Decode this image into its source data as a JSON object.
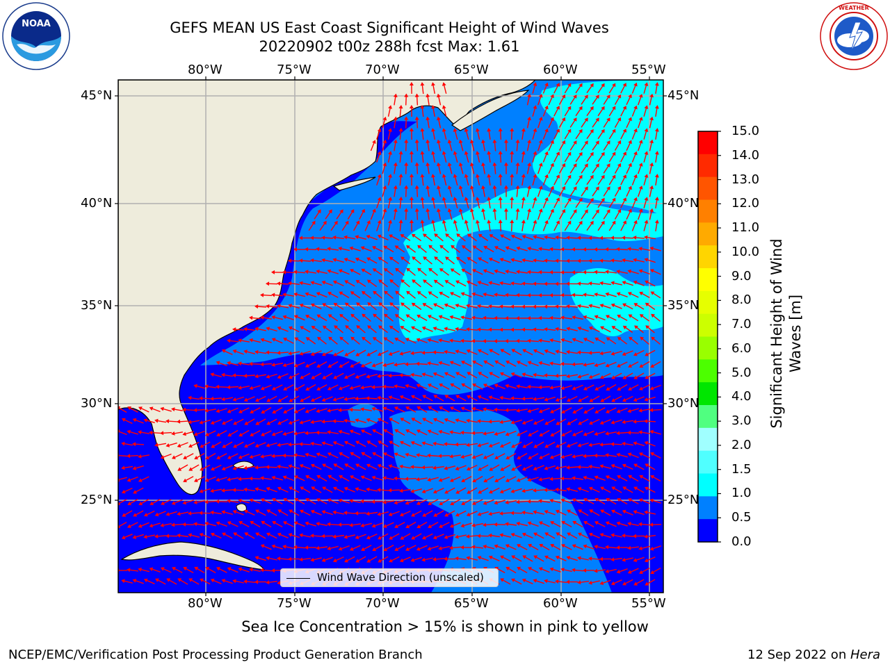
{
  "title": {
    "line1": "GEFS MEAN US East Coast Significant Height of Wind Waves",
    "line2": "20220902 t00z 288h fcst   Max: 1.61"
  },
  "logos": {
    "left": {
      "name": "NOAA",
      "ring_text": "NATIONAL OCEANIC AND ATMOSPHERIC ADMINISTRATION · U.S. DEPARTMENT OF COMMERCE"
    },
    "right": {
      "name": "NATIONAL WEATHER SERVICE"
    }
  },
  "map": {
    "lon_labels": [
      "80°W",
      "75°W",
      "70°W",
      "65°W",
      "60°W",
      "55°W"
    ],
    "lat_labels": [
      "45°N",
      "40°N",
      "35°N",
      "30°N",
      "25°N"
    ],
    "colors": {
      "land": "#eeecdc",
      "band_0": "#0000ff",
      "band_05": "#0080ff",
      "band_10": "#00ffff",
      "arrow": "#ff0000",
      "grid": "#b0b0b0"
    }
  },
  "legend": {
    "label": "Wind Wave Direction (unscaled)"
  },
  "colorbar": {
    "label": "Significant Height of Wind Waves [m]",
    "ticks": [
      "15.0",
      "14.0",
      "13.0",
      "12.0",
      "11.0",
      "10.0",
      "9.0",
      "8.0",
      "7.0",
      "6.0",
      "5.0",
      "4.0",
      "3.0",
      "2.0",
      "1.5",
      "1.0",
      "0.5",
      "0.0"
    ],
    "colors": [
      "#ff0000",
      "#ff2a00",
      "#ff5500",
      "#ff8000",
      "#ffaa00",
      "#ffd500",
      "#ffff00",
      "#e6ff00",
      "#ccff00",
      "#99ff00",
      "#4cff00",
      "#00e600",
      "#50ff80",
      "#a0ffff",
      "#50ffff",
      "#00ffff",
      "#0080ff",
      "#0000ff"
    ]
  },
  "note": "Sea Ice Concentration > 15% is shown in pink to yellow",
  "footer": {
    "left": "NCEP/EMC/Verification Post Processing Product Generation Branch",
    "date": "12 Sep 2022 on ",
    "machine": "Hera"
  }
}
